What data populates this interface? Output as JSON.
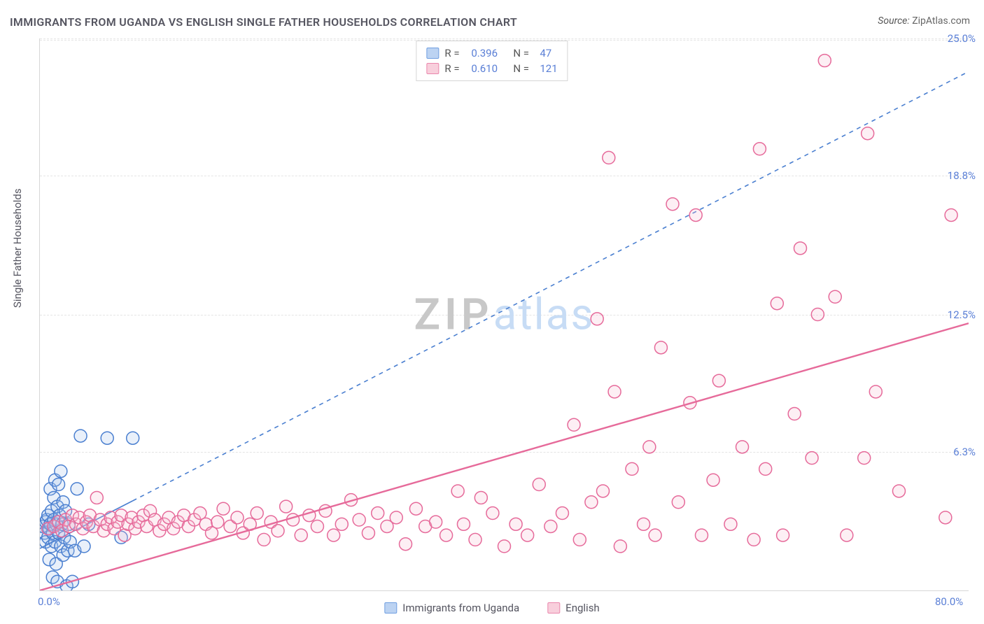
{
  "title": "IMMIGRANTS FROM UGANDA VS ENGLISH SINGLE FATHER HOUSEHOLDS CORRELATION CHART",
  "source_label": "Source:",
  "source_value": "ZipAtlas.com",
  "y_axis_label": "Single Father Households",
  "watermark": {
    "part1": "ZIP",
    "part2": "atlas"
  },
  "chart": {
    "type": "scatter",
    "background_color": "#ffffff",
    "grid_color": "#e4e4e4",
    "axis_color": "#d6d6d6",
    "tick_label_color": "#5a7fd6",
    "text_color": "#555560",
    "xlim": [
      0.0,
      80.0
    ],
    "ylim": [
      0.0,
      25.0
    ],
    "x_ticks": [
      0.0,
      80.0
    ],
    "x_tick_labels": [
      "0.0%",
      "80.0%"
    ],
    "y_ticks": [
      6.3,
      12.5,
      18.8,
      25.0
    ],
    "y_tick_labels": [
      "6.3%",
      "12.5%",
      "18.8%",
      "25.0%"
    ],
    "y_grid_extra": [
      0.2
    ],
    "marker_radius": 9,
    "marker_stroke_width": 1.5,
    "marker_fill_opacity": 0.25,
    "title_fontsize": 16,
    "label_fontsize": 15,
    "tick_fontsize": 15
  },
  "series": [
    {
      "id": "uganda",
      "label": "Immigrants from Uganda",
      "color_stroke": "#4a7fd0",
      "color_fill": "#a9c5ec",
      "swatch_fill": "#bcd3f2",
      "swatch_border": "#6f9ee0",
      "R": "0.396",
      "N": "47",
      "trend": {
        "x1": 0.0,
        "y1": 1.9,
        "x2": 80.0,
        "y2": 23.5,
        "draw_x1": 0.0,
        "draw_x2": 80.0,
        "solid_until_x": 8.0,
        "dash": "6,6",
        "width": 1.6
      },
      "points": [
        [
          0.2,
          2.9
        ],
        [
          0.3,
          2.9
        ],
        [
          0.4,
          2.6
        ],
        [
          0.5,
          3.1
        ],
        [
          0.5,
          2.2
        ],
        [
          0.6,
          3.2
        ],
        [
          0.7,
          2.4
        ],
        [
          0.7,
          3.4
        ],
        [
          0.8,
          2.8
        ],
        [
          0.8,
          1.4
        ],
        [
          0.9,
          3.0
        ],
        [
          0.9,
          4.6
        ],
        [
          1.0,
          2.0
        ],
        [
          1.0,
          3.6
        ],
        [
          1.1,
          2.6
        ],
        [
          1.1,
          0.6
        ],
        [
          1.2,
          3.2
        ],
        [
          1.2,
          4.2
        ],
        [
          1.3,
          2.2
        ],
        [
          1.3,
          5.0
        ],
        [
          1.4,
          3.0
        ],
        [
          1.4,
          1.2
        ],
        [
          1.5,
          3.8
        ],
        [
          1.5,
          0.4
        ],
        [
          1.6,
          2.6
        ],
        [
          1.6,
          4.8
        ],
        [
          1.7,
          3.4
        ],
        [
          1.8,
          5.4
        ],
        [
          1.8,
          2.0
        ],
        [
          1.9,
          3.0
        ],
        [
          2.0,
          1.6
        ],
        [
          2.0,
          4.0
        ],
        [
          2.1,
          2.4
        ],
        [
          2.2,
          3.6
        ],
        [
          2.3,
          0.2
        ],
        [
          2.4,
          1.8
        ],
        [
          2.5,
          3.0
        ],
        [
          2.6,
          2.2
        ],
        [
          2.8,
          0.4
        ],
        [
          3.0,
          1.8
        ],
        [
          3.2,
          4.6
        ],
        [
          3.5,
          7.0
        ],
        [
          3.8,
          2.0
        ],
        [
          4.2,
          3.0
        ],
        [
          5.8,
          6.9
        ],
        [
          7.0,
          2.4
        ],
        [
          8.0,
          6.9
        ]
      ]
    },
    {
      "id": "english",
      "label": "English",
      "color_stroke": "#e66a9a",
      "color_fill": "#f6c1d4",
      "swatch_fill": "#f8cfdc",
      "swatch_border": "#ea86ac",
      "R": "0.610",
      "N": "121",
      "trend": {
        "x1": 0.0,
        "y1": 0.0,
        "x2": 80.0,
        "y2": 12.1,
        "draw_x1": 0.0,
        "draw_x2": 80.0,
        "solid_until_x": 80.0,
        "dash": "",
        "width": 2.4
      },
      "points": [
        [
          0.7,
          2.8
        ],
        [
          1.2,
          2.9
        ],
        [
          1.6,
          3.1
        ],
        [
          1.9,
          2.7
        ],
        [
          2.2,
          3.2
        ],
        [
          2.5,
          2.9
        ],
        [
          2.8,
          3.4
        ],
        [
          3.1,
          3.0
        ],
        [
          3.4,
          3.3
        ],
        [
          3.7,
          2.8
        ],
        [
          4.0,
          3.1
        ],
        [
          4.3,
          3.4
        ],
        [
          4.6,
          2.9
        ],
        [
          4.9,
          4.2
        ],
        [
          5.2,
          3.2
        ],
        [
          5.5,
          2.7
        ],
        [
          5.8,
          3.0
        ],
        [
          6.1,
          3.3
        ],
        [
          6.4,
          2.8
        ],
        [
          6.7,
          3.1
        ],
        [
          7.0,
          3.4
        ],
        [
          7.3,
          2.5
        ],
        [
          7.6,
          3.0
        ],
        [
          7.9,
          3.3
        ],
        [
          8.2,
          2.8
        ],
        [
          8.5,
          3.1
        ],
        [
          8.9,
          3.4
        ],
        [
          9.2,
          2.9
        ],
        [
          9.5,
          3.6
        ],
        [
          9.9,
          3.2
        ],
        [
          10.3,
          2.7
        ],
        [
          10.7,
          3.0
        ],
        [
          11.1,
          3.3
        ],
        [
          11.5,
          2.8
        ],
        [
          11.9,
          3.1
        ],
        [
          12.4,
          3.4
        ],
        [
          12.8,
          2.9
        ],
        [
          13.3,
          3.2
        ],
        [
          13.8,
          3.5
        ],
        [
          14.3,
          3.0
        ],
        [
          14.8,
          2.6
        ],
        [
          15.3,
          3.1
        ],
        [
          15.8,
          3.7
        ],
        [
          16.4,
          2.9
        ],
        [
          17.0,
          3.3
        ],
        [
          17.5,
          2.6
        ],
        [
          18.1,
          3.0
        ],
        [
          18.7,
          3.5
        ],
        [
          19.3,
          2.3
        ],
        [
          19.9,
          3.1
        ],
        [
          20.5,
          2.7
        ],
        [
          21.2,
          3.8
        ],
        [
          21.8,
          3.2
        ],
        [
          22.5,
          2.5
        ],
        [
          23.2,
          3.4
        ],
        [
          23.9,
          2.9
        ],
        [
          24.6,
          3.6
        ],
        [
          25.3,
          2.5
        ],
        [
          26.0,
          3.0
        ],
        [
          26.8,
          4.1
        ],
        [
          27.5,
          3.2
        ],
        [
          28.3,
          2.6
        ],
        [
          29.1,
          3.5
        ],
        [
          29.9,
          2.9
        ],
        [
          30.7,
          3.3
        ],
        [
          31.5,
          2.1
        ],
        [
          32.4,
          3.7
        ],
        [
          33.2,
          2.9
        ],
        [
          34.1,
          3.1
        ],
        [
          35.0,
          2.5
        ],
        [
          36.0,
          4.5
        ],
        [
          36.5,
          3.0
        ],
        [
          37.5,
          2.3
        ],
        [
          38.0,
          4.2
        ],
        [
          39.0,
          3.5
        ],
        [
          40.0,
          2.0
        ],
        [
          41.0,
          3.0
        ],
        [
          42.0,
          2.5
        ],
        [
          43.0,
          4.8
        ],
        [
          44.0,
          2.9
        ],
        [
          45.0,
          3.5
        ],
        [
          46.0,
          7.5
        ],
        [
          46.5,
          2.3
        ],
        [
          47.5,
          4.0
        ],
        [
          48.0,
          12.3
        ],
        [
          48.5,
          4.5
        ],
        [
          49.0,
          19.6
        ],
        [
          49.5,
          9.0
        ],
        [
          50.0,
          2.0
        ],
        [
          51.0,
          5.5
        ],
        [
          52.0,
          3.0
        ],
        [
          52.5,
          6.5
        ],
        [
          53.0,
          2.5
        ],
        [
          53.5,
          11.0
        ],
        [
          54.5,
          17.5
        ],
        [
          55.0,
          4.0
        ],
        [
          56.0,
          8.5
        ],
        [
          56.5,
          17.0
        ],
        [
          57.0,
          2.5
        ],
        [
          58.0,
          5.0
        ],
        [
          58.5,
          9.5
        ],
        [
          59.5,
          3.0
        ],
        [
          60.5,
          6.5
        ],
        [
          61.5,
          2.3
        ],
        [
          62.0,
          20.0
        ],
        [
          62.5,
          5.5
        ],
        [
          63.5,
          13.0
        ],
        [
          64.0,
          2.5
        ],
        [
          65.0,
          8.0
        ],
        [
          65.5,
          15.5
        ],
        [
          66.5,
          6.0
        ],
        [
          67.0,
          12.5
        ],
        [
          67.6,
          24.0
        ],
        [
          68.5,
          13.3
        ],
        [
          69.5,
          2.5
        ],
        [
          71.0,
          6.0
        ],
        [
          71.3,
          20.7
        ],
        [
          72.0,
          9.0
        ],
        [
          74.0,
          4.5
        ],
        [
          78.0,
          3.3
        ],
        [
          78.5,
          17.0
        ]
      ]
    }
  ],
  "legend_top": {
    "r_label": "R =",
    "n_label": "N ="
  }
}
